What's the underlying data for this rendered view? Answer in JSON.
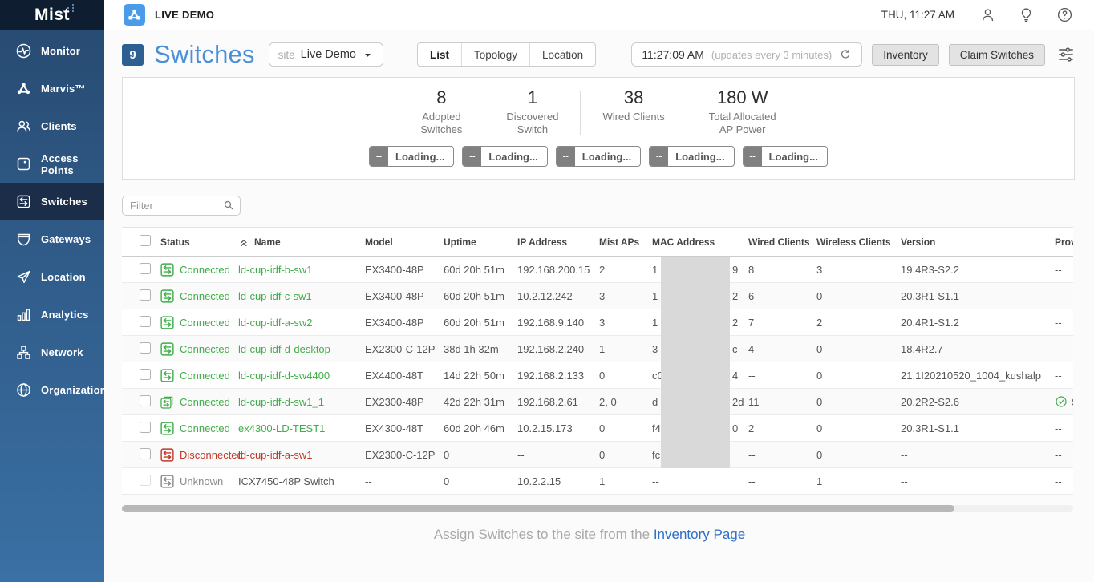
{
  "colors": {
    "accent_blue": "#4a90d9",
    "badge_blue": "#2d5f93",
    "brand_icon_blue": "#4a9ce8",
    "connected_green": "#3fae49",
    "disconnected_red": "#c0392b",
    "unknown_gray": "#8a8a8a",
    "link_blue": "#2e6fc9",
    "sidebar_active_bg": "#1c2d49"
  },
  "topbar": {
    "brand": "LIVE DEMO",
    "datetime": "THU, 11:27 AM",
    "icons": [
      "user-icon",
      "lightbulb-icon",
      "help-icon"
    ]
  },
  "sidebar": {
    "logo": "Mist",
    "items": [
      {
        "label": "Monitor",
        "icon": "monitor-icon",
        "active": false
      },
      {
        "label": "Marvis™",
        "icon": "marvis-icon",
        "active": false
      },
      {
        "label": "Clients",
        "icon": "clients-icon",
        "active": false
      },
      {
        "label": "Access Points",
        "icon": "access-points-icon",
        "active": false
      },
      {
        "label": "Switches",
        "icon": "switches-icon",
        "active": true
      },
      {
        "label": "Gateways",
        "icon": "gateways-icon",
        "active": false
      },
      {
        "label": "Location",
        "icon": "location-icon",
        "active": false
      },
      {
        "label": "Analytics",
        "icon": "analytics-icon",
        "active": false
      },
      {
        "label": "Network",
        "icon": "network-icon",
        "active": false
      },
      {
        "label": "Organization",
        "icon": "organization-icon",
        "active": false
      }
    ]
  },
  "page_header": {
    "count_badge": "9",
    "title": "Switches",
    "site_label": "site",
    "site_value": "Live Demo",
    "view_tabs": [
      {
        "label": "List",
        "active": true
      },
      {
        "label": "Topology",
        "active": false
      },
      {
        "label": "Location",
        "active": false
      }
    ],
    "clock_time": "11:27:09 AM",
    "clock_note": "(updates every 3 minutes)",
    "inventory_button": "Inventory",
    "claim_button": "Claim Switches"
  },
  "stats": [
    {
      "value": "8",
      "label_lines": [
        "Adopted",
        "Switches"
      ]
    },
    {
      "value": "1",
      "label_lines": [
        "Discovered",
        "Switch"
      ]
    },
    {
      "value": "38",
      "label_lines": [
        "Wired Clients"
      ]
    },
    {
      "value": "180 W",
      "label_lines": [
        "Total Allocated",
        "AP Power"
      ]
    }
  ],
  "loading_buttons": [
    {
      "prefix": "--",
      "label": "Loading..."
    },
    {
      "prefix": "--",
      "label": "Loading..."
    },
    {
      "prefix": "--",
      "label": "Loading..."
    },
    {
      "prefix": "--",
      "label": "Loading..."
    },
    {
      "prefix": "--",
      "label": "Loading..."
    }
  ],
  "filter": {
    "placeholder": "Filter"
  },
  "table": {
    "columns": [
      "Status",
      "Name",
      "Model",
      "Uptime",
      "IP Address",
      "Mist APs",
      "MAC Address",
      "Wired Clients",
      "Wireless Clients",
      "Version",
      "Provis"
    ],
    "mac_column_redacted": true,
    "rows": [
      {
        "status": "Connected",
        "kind": "connected",
        "icon": "switch-status-icon",
        "name": "ld-cup-idf-b-sw1",
        "model": "EX3400-48P",
        "uptime": "60d 20h 51m",
        "ip": "192.168.200.15",
        "mist_aps": "2",
        "mac_prefix": "1",
        "mac_suffix": "9",
        "wired": "8",
        "wireless": "3",
        "version": "19.4R3-S2.2",
        "provision": "--",
        "provision_check": false
      },
      {
        "status": "Connected",
        "kind": "connected",
        "icon": "switch-status-icon",
        "name": "ld-cup-idf-c-sw1",
        "model": "EX3400-48P",
        "uptime": "60d 20h 51m",
        "ip": "10.2.12.242",
        "mist_aps": "3",
        "mac_prefix": "1",
        "mac_suffix": "2",
        "wired": "6",
        "wireless": "0",
        "version": "20.3R1-S1.1",
        "provision": "--",
        "provision_check": false
      },
      {
        "status": "Connected",
        "kind": "connected",
        "icon": "switch-status-icon",
        "name": "ld-cup-idf-a-sw2",
        "model": "EX3400-48P",
        "uptime": "60d 20h 51m",
        "ip": "192.168.9.140",
        "mist_aps": "3",
        "mac_prefix": "1",
        "mac_suffix": "2",
        "wired": "7",
        "wireless": "2",
        "version": "20.4R1-S1.2",
        "provision": "--",
        "provision_check": false
      },
      {
        "status": "Connected",
        "kind": "connected",
        "icon": "switch-status-icon",
        "name": "ld-cup-idf-d-desktop",
        "model": "EX2300-C-12P",
        "uptime": "38d 1h 32m",
        "ip": "192.168.2.240",
        "mist_aps": "1",
        "mac_prefix": "3",
        "mac_suffix": "c",
        "wired": "4",
        "wireless": "0",
        "version": "18.4R2.7",
        "provision": "--",
        "provision_check": false
      },
      {
        "status": "Connected",
        "kind": "connected",
        "icon": "switch-status-icon",
        "name": "ld-cup-idf-d-sw4400",
        "model": "EX4400-48T",
        "uptime": "14d 22h 50m",
        "ip": "192.168.2.133",
        "mist_aps": "0",
        "mac_prefix": "c0",
        "mac_suffix": "4",
        "wired": "--",
        "wireless": "0",
        "version": "21.1I20210520_1004_kushalp",
        "provision": "--",
        "provision_check": false
      },
      {
        "status": "Connected",
        "kind": "connected",
        "icon": "switch-stack-icon",
        "name": "ld-cup-idf-d-sw1_1",
        "model": "EX2300-48P",
        "uptime": "42d 22h 31m",
        "ip": "192.168.2.61",
        "mist_aps": "2, 0",
        "mac_prefix": "d",
        "mac_suffix": "2d",
        "wired": "11",
        "wireless": "0",
        "version": "20.2R2-S2.6",
        "provision": "S",
        "provision_check": true
      },
      {
        "status": "Connected",
        "kind": "connected",
        "icon": "switch-status-icon",
        "name": "ex4300-LD-TEST1",
        "model": "EX4300-48T",
        "uptime": "60d 20h 46m",
        "ip": "10.2.15.173",
        "mist_aps": "0",
        "mac_prefix": "f4",
        "mac_suffix": "0",
        "wired": "2",
        "wireless": "0",
        "version": "20.3R1-S1.1",
        "provision": "--",
        "provision_check": false
      },
      {
        "status": "Disconnected",
        "kind": "disconnected",
        "icon": "switch-status-icon",
        "name": "ld-cup-idf-a-sw1",
        "model": "EX2300-C-12P",
        "uptime": "0",
        "ip": "--",
        "mist_aps": "0",
        "mac_prefix": "fc",
        "mac_suffix": "",
        "wired": "--",
        "wireless": "0",
        "version": "--",
        "provision": "--",
        "provision_check": false
      },
      {
        "status": "Unknown",
        "kind": "unknown",
        "icon": "switch-status-icon",
        "checkbox_disabled": true,
        "name": "ICX7450-48P Switch",
        "model": "--",
        "uptime": "0",
        "ip": "10.2.2.15",
        "mist_aps": "1",
        "mac_prefix": "--",
        "mac_suffix": "",
        "wired": "--",
        "wireless": "1",
        "version": "--",
        "provision": "--",
        "provision_check": false
      }
    ]
  },
  "footer": {
    "note": "Assign Switches to the site from the",
    "link": "Inventory Page"
  }
}
